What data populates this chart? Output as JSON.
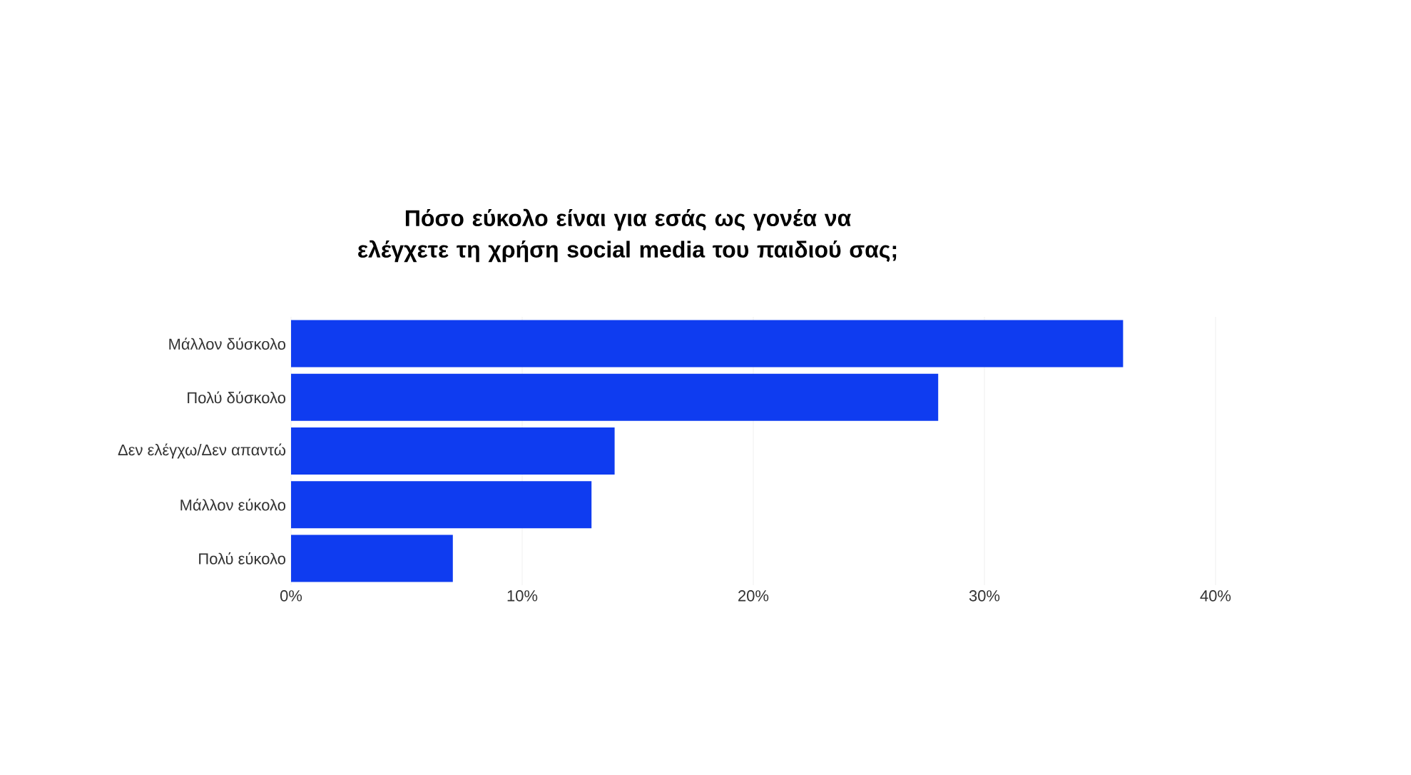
{
  "chart_data": {
    "type": "bar",
    "orientation": "horizontal",
    "title": "Πόσο εύκολο είναι για εσάς ως γονέα να ελέγχετε τη χρήση social media του παιδιού σας;",
    "categories": [
      "Μάλλον δύσκολο",
      "Πολύ δύσκολο",
      "Δεν ελέγχω/Δεν απαντώ",
      "Μάλλον εύκολο",
      "Πολύ εύκολο"
    ],
    "values": [
      36,
      28,
      14,
      13,
      7
    ],
    "color": "#0f3cf0",
    "xlim": [
      0,
      40
    ],
    "xticks": [
      {
        "value": 0,
        "label": "0%"
      },
      {
        "value": 10,
        "label": "10%"
      },
      {
        "value": 20,
        "label": "20%"
      },
      {
        "value": 30,
        "label": "30%"
      },
      {
        "value": 40,
        "label": "40%"
      }
    ],
    "grid": "x"
  }
}
